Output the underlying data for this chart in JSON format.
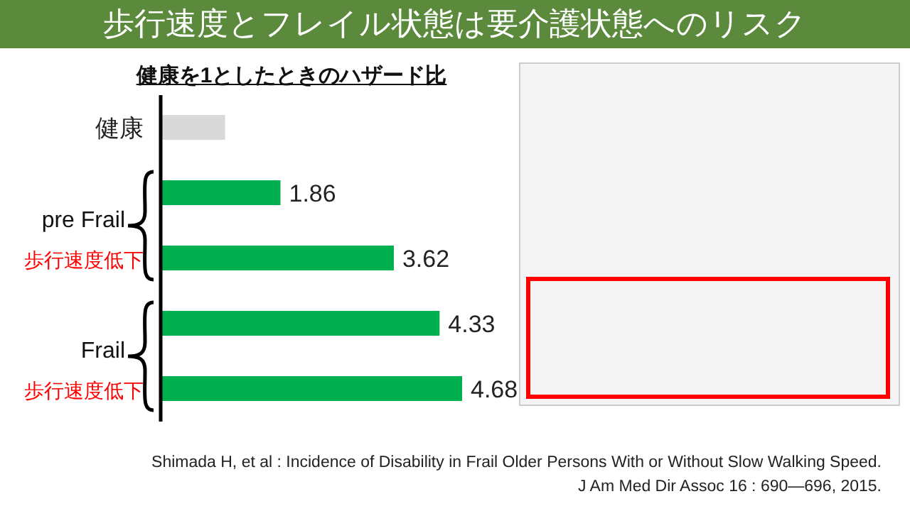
{
  "chart_data": {
    "type": "bar",
    "orientation": "horizontal",
    "title": "歩行速度とフレイル状態は要介護状態へのリスク",
    "subtitle": "健康を1としたときのハザード比",
    "categories": [
      "健康",
      null,
      "歩行速度低下",
      null,
      "歩行速度低下"
    ],
    "values": [
      1,
      1.86,
      3.62,
      4.33,
      4.68
    ],
    "colors": [
      "#d9d9d9",
      "#00b050",
      "#00b050",
      "#00b050",
      "#00b050"
    ],
    "value_labels": [
      null,
      "1.86",
      "3.62",
      "4.33",
      "4.68"
    ],
    "tick_labels": "y",
    "grid": false,
    "annotations": [
      "pre Frail",
      "Frail",
      "Shimada H, et al : Incidence of Disability in Frail Older Persons With or Without Slow Walking Speed.",
      "J Am Med Dir Assoc 16 : 690—696, 2015."
    ]
  }
}
